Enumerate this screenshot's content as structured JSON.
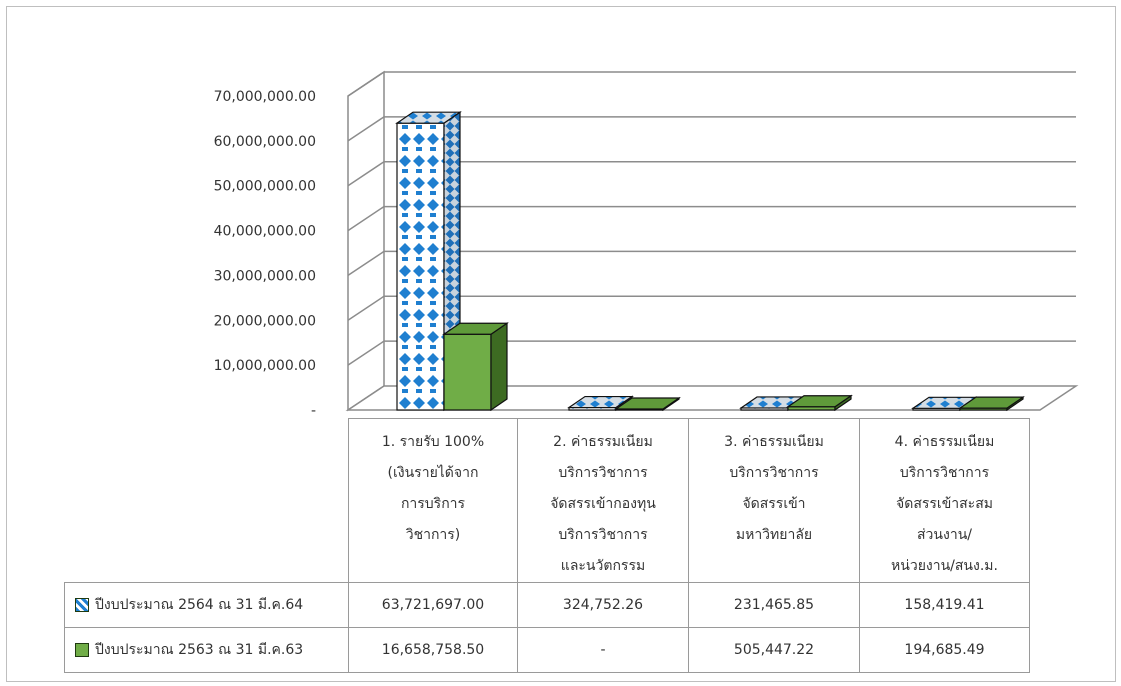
{
  "chart_data": {
    "type": "bar",
    "title": "",
    "xlabel": "",
    "ylabel": "",
    "ylim": [
      0,
      70000000
    ],
    "y_ticks": [
      "-",
      "10,000,000.00",
      "20,000,000.00",
      "30,000,000.00",
      "40,000,000.00",
      "50,000,000.00",
      "60,000,000.00",
      "70,000,000.00"
    ],
    "y_tick_values": [
      0,
      10000000,
      20000000,
      30000000,
      40000000,
      50000000,
      60000000,
      70000000
    ],
    "grid": true,
    "style": "3d-clustered-column",
    "legend_placement": "data-table",
    "categories": [
      [
        "1.  รายรับ 100%",
        "(เงินรายได้จาก",
        "การบริการ",
        "วิชาการ)"
      ],
      [
        "2.  ค่าธรรมเนียม",
        "บริการวิชาการ",
        "จัดสรรเข้ากองทุน",
        "บริการวิชาการ",
        "และนวัตกรรม"
      ],
      [
        "3.  ค่าธรรมเนียม",
        "บริการวิชาการ",
        "จัดสรรเข้า",
        "มหาวิทยาลัย"
      ],
      [
        "4.  ค่าธรรมเนียม",
        "บริการวิชาการ",
        "จัดสรรเข้าสะสม",
        "ส่วนงาน/",
        "หน่วยงาน/สนง.ม."
      ]
    ],
    "series": [
      {
        "name": "ปีงบประมาณ 2564 ณ  31 มี.ค.64",
        "values": [
          63721697.0,
          324752.26,
          231465.85,
          158419.41
        ],
        "labels": [
          "63,721,697.00",
          "324,752.26",
          "231,465.85",
          "158,419.41"
        ],
        "color": "#1f7fd0",
        "pattern": "blue-diamond"
      },
      {
        "name": "ปีงบประมาณ 2563 ณ  31 มี.ค.63",
        "values": [
          16658758.5,
          0,
          505447.22,
          194685.49
        ],
        "labels": [
          "16,658,758.50",
          "-",
          "505,447.22",
          "194,685.49"
        ],
        "color": "#70ad47",
        "pattern": "solid"
      }
    ]
  }
}
